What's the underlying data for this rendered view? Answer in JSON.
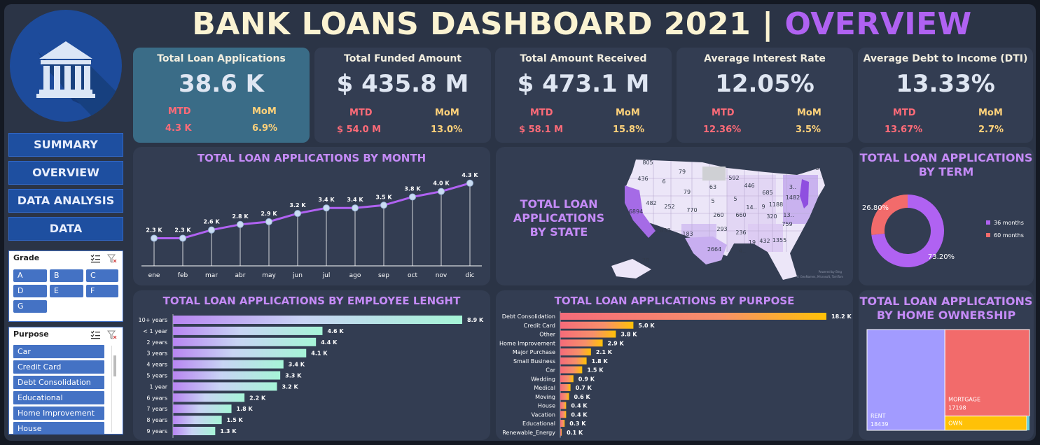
{
  "header": {
    "title_main": "BANK LOANS DASHBOARD 2021 |",
    "title_accent": "OVERVIEW"
  },
  "nav": {
    "items": [
      "SUMMARY",
      "OVERVIEW",
      "DATA ANALYSIS",
      "DATA"
    ]
  },
  "grade_slicer": {
    "title": "Grade",
    "options": [
      "A",
      "B",
      "C",
      "D",
      "E",
      "F",
      "G"
    ]
  },
  "purpose_slicer": {
    "title": "Purpose",
    "options": [
      "Car",
      "Credit Card",
      "Debt Consolidation",
      "Educational",
      "Home Improvement",
      "House"
    ]
  },
  "kpis": [
    {
      "title": "Total Loan Applications",
      "value": "38.6 K",
      "mtd_label": "MTD",
      "mtd": "4.3 K",
      "mom_label": "MoM",
      "mom": "6.9%"
    },
    {
      "title": "Total Funded Amount",
      "value": "$ 435.8 M",
      "mtd_label": "MTD",
      "mtd": "$ 54.0 M",
      "mom_label": "MoM",
      "mom": "13.0%"
    },
    {
      "title": "Total Amount Received",
      "value": "$ 473.1 M",
      "mtd_label": "MTD",
      "mtd": "$ 58.1 M",
      "mom_label": "MoM",
      "mom": "15.8%"
    },
    {
      "title": "Average Interest Rate",
      "value": "12.05%",
      "mtd_label": "MTD",
      "mtd": "12.36%",
      "mom_label": "MoM",
      "mom": "3.5%"
    },
    {
      "title": "Average Debt to Income (DTI)",
      "value": "13.33%",
      "mtd_label": "MTD",
      "mtd": "13.67%",
      "mom_label": "MoM",
      "mom": "2.7%"
    }
  ],
  "colors": {
    "accent": "#b062f2",
    "title_cream": "#fbf3d2",
    "mtd": "#ff6b78",
    "mom": "#ffd27a",
    "panel": "#333d52",
    "frame": "#2b3446"
  },
  "month_panel": {
    "title": "TOTAL LOAN APPLICATIONS BY MONTH"
  },
  "state_panel": {
    "title": "TOTAL LOAN APPLICATIONS BY STATE",
    "attribution": "Powered by Bing",
    "attribution2": "© GeoNames, Microsoft, TomTom"
  },
  "term_panel": {
    "title_line1": "TOTAL LOAN APPLICATIONS",
    "title_line2": "BY TERM"
  },
  "emp_panel": {
    "title": "TOTAL LOAN APPLICATIONS BY EMPLOYEE LENGHT"
  },
  "purpose_panel": {
    "title": "TOTAL LOAN APPLICATIONS BY PURPOSE"
  },
  "home_panel": {
    "title_line1": "TOTAL LOAN APPLICATIONS",
    "title_line2": "BY HOME OWNERSHIP"
  },
  "chart_data": [
    {
      "type": "line",
      "title": "TOTAL LOAN APPLICATIONS BY MONTH",
      "categories": [
        "ene",
        "feb",
        "mar",
        "abr",
        "may",
        "jun",
        "jul",
        "ago",
        "sep",
        "oct",
        "nov",
        "dic"
      ],
      "values": [
        2.3,
        2.3,
        2.6,
        2.8,
        2.9,
        3.2,
        3.4,
        3.4,
        3.5,
        3.8,
        4.0,
        4.3
      ],
      "labels": [
        "2.3 K",
        "2.3 K",
        "2.6 K",
        "2.8 K",
        "2.9 K",
        "3.2 K",
        "3.4 K",
        "3.4 K",
        "3.5 K",
        "3.8 K",
        "4.0 K",
        "4.3 K"
      ],
      "ylim": [
        0,
        4.6
      ]
    },
    {
      "type": "pie",
      "title": "TOTAL LOAN APPLICATIONS BY TERM",
      "categories": [
        "36 months",
        "60 months"
      ],
      "values": [
        73.2,
        26.8
      ],
      "labels": [
        "73.20%",
        "26.80%"
      ],
      "colors": [
        "#b062f2",
        "#f26b6b"
      ],
      "legend": "right"
    },
    {
      "type": "bar",
      "title": "TOTAL LOAN APPLICATIONS BY EMPLOYEE LENGHT",
      "categories": [
        "10+ years",
        "< 1 year",
        "2 years",
        "3 years",
        "4 years",
        "5 years",
        "1 year",
        "6 years",
        "7 years",
        "8 years",
        "9 years"
      ],
      "values": [
        8.9,
        4.6,
        4.4,
        4.1,
        3.4,
        3.3,
        3.2,
        2.2,
        1.8,
        1.5,
        1.3
      ],
      "labels": [
        "8.9 K",
        "4.6 K",
        "4.4 K",
        "4.1 K",
        "3.4 K",
        "3.3 K",
        "3.2 K",
        "2.2 K",
        "1.8 K",
        "1.5 K",
        "1.3 K"
      ]
    },
    {
      "type": "bar",
      "title": "TOTAL LOAN APPLICATIONS BY PURPOSE",
      "categories": [
        "Debt Consolidation",
        "Credit Card",
        "Other",
        "Home Improvement",
        "Major Purchase",
        "Small Business",
        "Car",
        "Wedding",
        "Medical",
        "Moving",
        "House",
        "Vacation",
        "Educational",
        "Renewable_Energy"
      ],
      "values": [
        18.2,
        5.0,
        3.8,
        2.9,
        2.1,
        1.8,
        1.5,
        0.9,
        0.7,
        0.6,
        0.4,
        0.4,
        0.3,
        0.1
      ],
      "labels": [
        "18.2 K",
        "5.0 K",
        "3.8 K",
        "2.9 K",
        "2.1 K",
        "1.8 K",
        "1.5 K",
        "0.9 K",
        "0.7 K",
        "0.6 K",
        "0.4 K",
        "0.4 K",
        "0.3 K",
        "0.1 K"
      ]
    },
    {
      "type": "heatmap",
      "title": "TOTAL LOAN APPLICATIONS BY STATE",
      "categories": [
        "805",
        "79",
        "436",
        "6",
        "79",
        "63",
        "592",
        "446",
        "3",
        "482",
        "252",
        "5",
        "5",
        "685",
        "1482",
        "6894",
        "770",
        "260",
        "14..",
        "9",
        "1188",
        "3..",
        "13..",
        "320",
        "293",
        "660",
        "833",
        "183",
        "236",
        "759",
        "2664",
        "4..",
        "19",
        "432",
        "1355",
        "78"
      ]
    },
    {
      "type": "bar",
      "title": "TOTAL LOAN APPLICATIONS BY HOME OWNERSHIP",
      "categories": [
        "RENT",
        "MORTGAGE",
        "OWN"
      ],
      "values": [
        18439,
        17198,
        2838
      ],
      "labels": [
        "18439",
        "17198",
        ""
      ],
      "colors": [
        "#a29bff",
        "#f26b6b",
        "#ffc107"
      ]
    }
  ]
}
